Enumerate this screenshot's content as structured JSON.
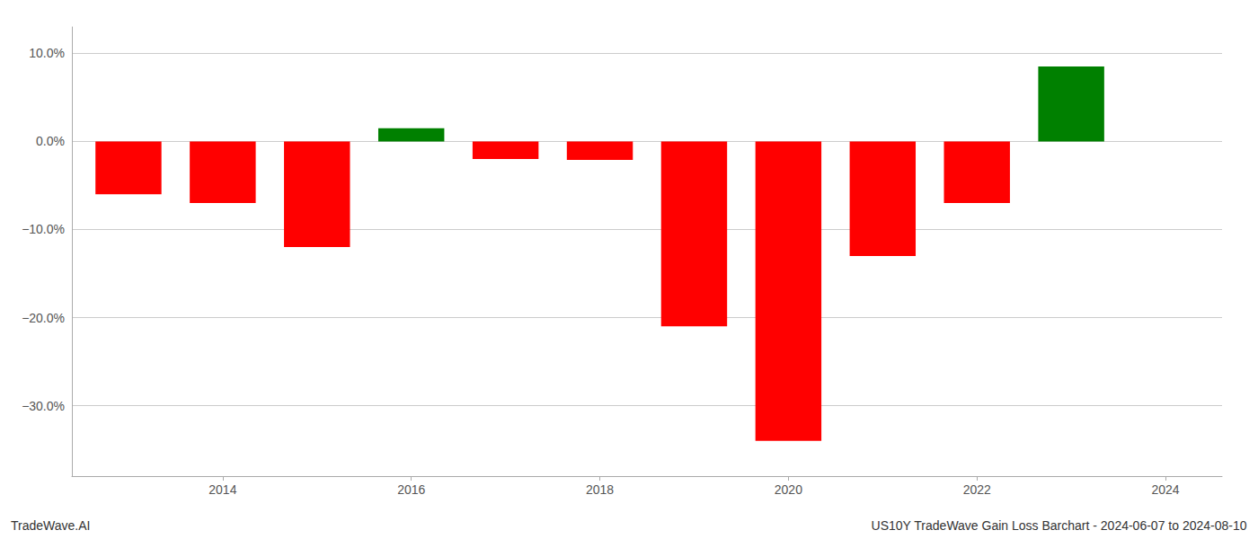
{
  "chart_data": {
    "type": "bar",
    "x": [
      2013,
      2014,
      2015,
      2016,
      2017,
      2018,
      2019,
      2020,
      2021,
      2022,
      2023
    ],
    "values": [
      -0.06,
      -0.07,
      -0.12,
      0.015,
      -0.02,
      -0.021,
      -0.21,
      -0.34,
      -0.13,
      -0.07,
      0.085
    ],
    "colors": [
      "#ff0000",
      "#ff0000",
      "#ff0000",
      "#008000",
      "#ff0000",
      "#ff0000",
      "#ff0000",
      "#ff0000",
      "#ff0000",
      "#ff0000",
      "#008000"
    ],
    "xlim": [
      2012.4,
      2024.6
    ],
    "xticks": [
      2014,
      2016,
      2018,
      2020,
      2022,
      2024
    ],
    "ylim": [
      -0.38,
      0.13
    ],
    "yticks": [
      {
        "value": -0.3,
        "label": "−30.0%"
      },
      {
        "value": -0.2,
        "label": "−20.0%"
      },
      {
        "value": -0.1,
        "label": "−10.0%"
      },
      {
        "value": 0.0,
        "label": "0.0%"
      },
      {
        "value": 0.1,
        "label": "10.0%"
      }
    ],
    "grid": true,
    "annotations": [
      "TradeWave.AI",
      "US10Y TradeWave Gain Loss Barchart - 2024-06-07 to 2024-08-10"
    ]
  }
}
